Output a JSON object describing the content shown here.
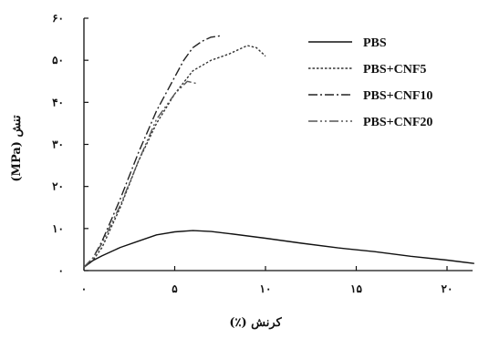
{
  "chart_data": {
    "type": "line",
    "title": "",
    "xlabel": "کرنش (٪)",
    "ylabel": "تنش (MPa)",
    "xlim": [
      0,
      22
    ],
    "ylim": [
      0,
      60
    ],
    "xticks": [
      {
        "value": 0,
        "label": "۰"
      },
      {
        "value": 5,
        "label": "۵"
      },
      {
        "value": 10,
        "label": "۱۰"
      },
      {
        "value": 15,
        "label": "۱۵"
      },
      {
        "value": 20,
        "label": "۲۰"
      }
    ],
    "yticks": [
      {
        "value": 0,
        "label": "۰"
      },
      {
        "value": 10,
        "label": "۱۰"
      },
      {
        "value": 20,
        "label": "۲۰"
      },
      {
        "value": 30,
        "label": "۳۰"
      },
      {
        "value": 40,
        "label": "۴۰"
      },
      {
        "value": 50,
        "label": "۵۰"
      },
      {
        "value": 60,
        "label": "۶۰"
      }
    ],
    "grid": false,
    "legend": "top-right",
    "series": [
      {
        "name": "PBS",
        "color": "#111111",
        "dash": "solid",
        "points": [
          [
            0,
            0.8
          ],
          [
            0.5,
            2.4
          ],
          [
            1,
            3.5
          ],
          [
            2,
            5.5
          ],
          [
            3,
            7.0
          ],
          [
            4,
            8.5
          ],
          [
            5,
            9.2
          ],
          [
            6,
            9.5
          ],
          [
            7,
            9.3
          ],
          [
            8,
            8.8
          ],
          [
            10,
            7.7
          ],
          [
            12,
            6.5
          ],
          [
            14,
            5.4
          ],
          [
            16,
            4.5
          ],
          [
            18,
            3.4
          ],
          [
            20,
            2.5
          ],
          [
            21.5,
            1.7
          ]
        ]
      },
      {
        "name": "PBS+CNF5",
        "color": "#333333",
        "dash": "dotted",
        "points": [
          [
            0,
            0.8
          ],
          [
            0.5,
            2.5
          ],
          [
            1,
            5.5
          ],
          [
            2,
            15
          ],
          [
            3,
            26
          ],
          [
            4,
            35
          ],
          [
            5,
            42
          ],
          [
            6,
            47.5
          ],
          [
            7,
            50
          ],
          [
            8,
            51.5
          ],
          [
            9,
            53.5
          ],
          [
            9.5,
            53
          ],
          [
            10,
            51
          ]
        ]
      },
      {
        "name": "PBS+CNF10",
        "color": "#222222",
        "dash": "dashdot",
        "points": [
          [
            0,
            0.8
          ],
          [
            0.5,
            3
          ],
          [
            1,
            7
          ],
          [
            2,
            17
          ],
          [
            3,
            28
          ],
          [
            4,
            38
          ],
          [
            5,
            46
          ],
          [
            5.5,
            50
          ],
          [
            6,
            53
          ],
          [
            6.5,
            54.5
          ],
          [
            7,
            55.5
          ],
          [
            7.5,
            55.8
          ]
        ]
      },
      {
        "name": "PBS+CNF20",
        "color": "#555555",
        "dash": "dashdotdot",
        "points": [
          [
            0,
            0.8
          ],
          [
            0.5,
            3
          ],
          [
            1,
            6.5
          ],
          [
            2,
            15.5
          ],
          [
            3,
            26
          ],
          [
            4,
            36
          ],
          [
            5,
            42
          ],
          [
            5.7,
            45
          ],
          [
            6.2,
            44.5
          ]
        ]
      }
    ]
  }
}
